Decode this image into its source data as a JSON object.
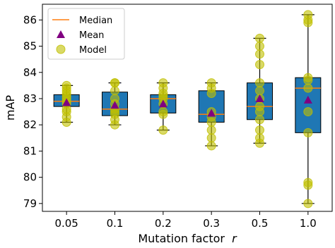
{
  "chart_data": {
    "type": "box",
    "xlabel": "Mutation factor",
    "xlabel_symbol": "r",
    "ylabel": "mAP",
    "ylim": [
      78.7,
      86.6
    ],
    "yticks": [
      79,
      80,
      81,
      82,
      83,
      84,
      85,
      86
    ],
    "categories": [
      "0.05",
      "0.1",
      "0.2",
      "0.3",
      "0.5",
      "1.0"
    ],
    "legend": {
      "position": "upper-left",
      "entries": [
        {
          "label": "Median",
          "marker": "line"
        },
        {
          "label": "Mean",
          "marker": "triangle"
        },
        {
          "label": "Model",
          "marker": "circle"
        }
      ]
    },
    "colors": {
      "box": "#1f77b4",
      "median": "#ff7f0e",
      "mean": "#800080",
      "model": "#bfbf00"
    },
    "boxes": [
      {
        "category": "0.05",
        "whisker_low": 82.1,
        "q1": 82.7,
        "median": 82.9,
        "q3": 83.15,
        "whisker_high": 83.5,
        "mean": 82.85,
        "models": [
          82.1,
          82.3,
          82.5,
          82.6,
          82.8,
          82.9,
          83.0,
          83.1,
          83.2,
          83.3,
          83.4,
          83.5
        ]
      },
      {
        "category": "0.1",
        "whisker_low": 82.0,
        "q1": 82.35,
        "median": 82.6,
        "q3": 83.25,
        "whisker_high": 83.6,
        "mean": 82.75,
        "models": [
          82.0,
          82.2,
          82.4,
          82.5,
          82.6,
          82.8,
          83.0,
          83.3,
          83.6,
          83.6
        ]
      },
      {
        "category": "0.2",
        "whisker_low": 81.8,
        "q1": 82.45,
        "median": 83.0,
        "q3": 83.15,
        "whisker_high": 83.6,
        "mean": 82.8,
        "models": [
          81.8,
          82.4,
          82.5,
          82.8,
          83.0,
          83.1,
          83.2,
          83.4,
          83.6
        ]
      },
      {
        "category": "0.3",
        "whisker_low": 81.2,
        "q1": 82.1,
        "median": 82.4,
        "q3": 83.3,
        "whisker_high": 83.6,
        "mean": 82.45,
        "models": [
          81.2,
          81.5,
          81.8,
          82.1,
          82.3,
          82.5,
          83.2,
          83.4,
          83.6
        ]
      },
      {
        "category": "0.5",
        "whisker_low": 81.3,
        "q1": 82.2,
        "median": 82.7,
        "q3": 83.6,
        "whisker_high": 85.3,
        "mean": 83.0,
        "models": [
          81.3,
          81.5,
          81.8,
          82.2,
          82.5,
          82.7,
          83.0,
          83.3,
          83.6,
          84.3,
          84.7,
          85.0,
          85.3
        ]
      },
      {
        "category": "1.0",
        "whisker_low": 79.0,
        "q1": 81.7,
        "median": 83.4,
        "q3": 83.8,
        "whisker_high": 86.2,
        "mean": 82.95,
        "models": [
          79.0,
          79.7,
          79.8,
          81.7,
          82.5,
          83.4,
          83.7,
          83.8,
          85.9,
          86.0,
          86.2
        ]
      }
    ]
  }
}
